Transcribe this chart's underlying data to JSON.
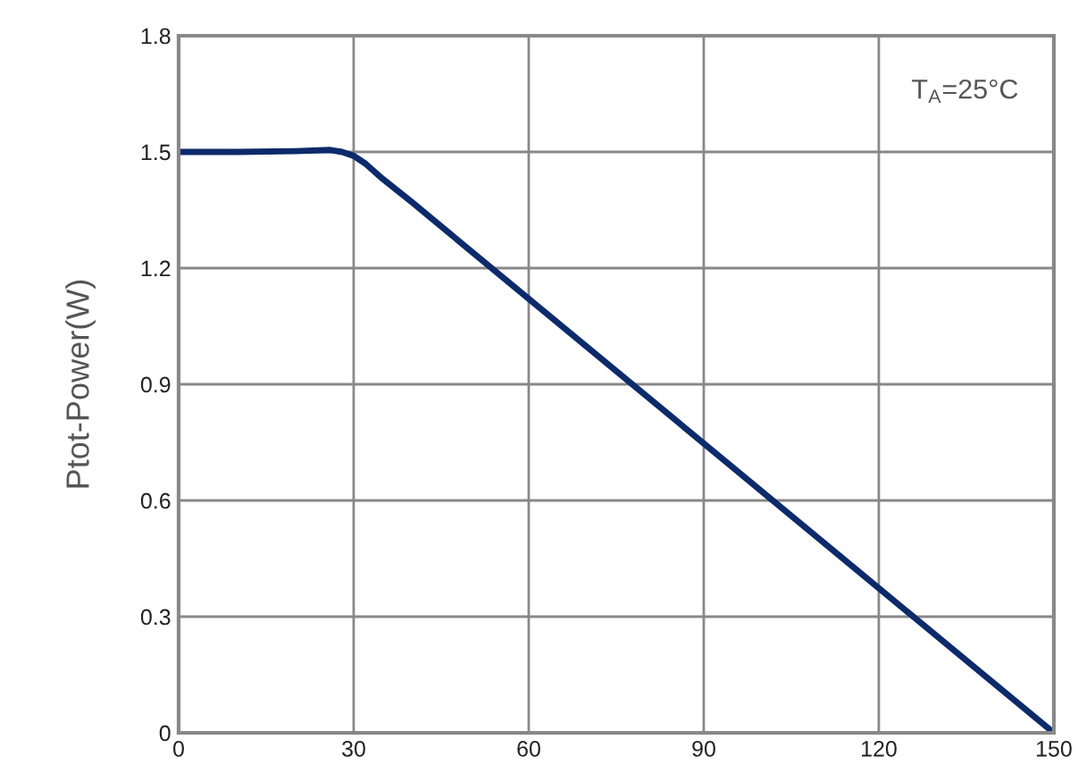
{
  "chart_data": {
    "type": "line",
    "ylabel": "Ptot-Power(W)",
    "annotations": [
      "T$_{A}$=25°C"
    ],
    "x": [
      0,
      10,
      20,
      26,
      28,
      30,
      32,
      35,
      40,
      150
    ],
    "series": [
      {
        "color": "#0d2a6b",
        "values": [
          1.5,
          1.5,
          1.502,
          1.505,
          1.5,
          1.49,
          1.47,
          1.43,
          1.37,
          0
        ]
      }
    ],
    "xlim": [
      0,
      150
    ],
    "xticks": [
      0,
      30,
      60,
      90,
      120,
      150
    ],
    "ylim": [
      0,
      1.8
    ],
    "yticks": [
      {
        "value": 0,
        "label": "0"
      },
      0.3,
      0.6,
      0.9,
      1.2,
      1.5,
      1.8
    ],
    "grid": true,
    "legend": false,
    "marker": "none",
    "line_style": "solid"
  }
}
